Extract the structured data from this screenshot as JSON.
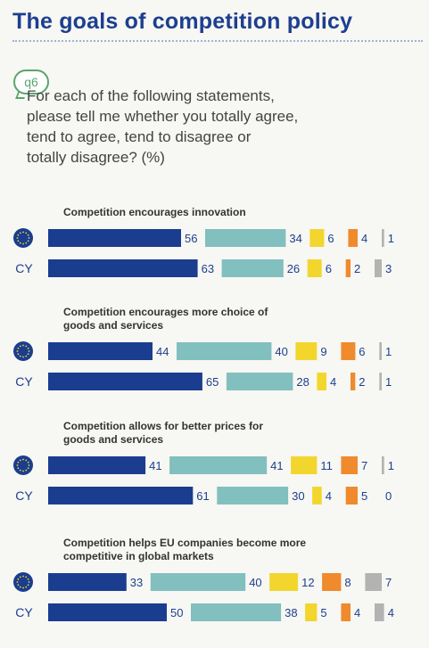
{
  "title": "The goals of competition policy",
  "question": {
    "badge": "q6",
    "text": "For each of the following statements,\nplease tell me whether you totally agree,\ntend to agree, tend to disagree or\ntotally disagree? (%)"
  },
  "colors": {
    "totally_agree": "#1a3d8f",
    "tend_to_agree": "#82bfbf",
    "tend_to_disagree": "#f2d62e",
    "totally_disagree": "#ef8a2d",
    "dont_know": "#b3b3b3",
    "eu_flag": "#1a3d8f",
    "eu_stars": "#f2d62e"
  },
  "chart_data": {
    "type": "bar",
    "stacked": true,
    "orientation": "horizontal",
    "title": "",
    "groups": [
      {
        "statement": "Competition encourages innovation",
        "rows": [
          {
            "label": "EU",
            "icon": "eu-flag-icon",
            "values": [
              56,
              34,
              6,
              4,
              1
            ]
          },
          {
            "label": "CY",
            "values": [
              63,
              26,
              6,
              2,
              3
            ]
          }
        ]
      },
      {
        "statement": "Competition encourages more choice of\ngoods and services",
        "rows": [
          {
            "label": "EU",
            "icon": "eu-flag-icon",
            "values": [
              44,
              40,
              9,
              6,
              1
            ]
          },
          {
            "label": "CY",
            "values": [
              65,
              28,
              4,
              2,
              1
            ]
          }
        ]
      },
      {
        "statement": "Competition allows for better prices for\ngoods and services",
        "rows": [
          {
            "label": "EU",
            "icon": "eu-flag-icon",
            "values": [
              41,
              41,
              11,
              7,
              1
            ]
          },
          {
            "label": "CY",
            "values": [
              61,
              30,
              4,
              5,
              0
            ]
          }
        ]
      },
      {
        "statement": "Competition helps EU companies become more\ncompetitive in global markets",
        "rows": [
          {
            "label": "EU",
            "icon": "eu-flag-icon",
            "values": [
              33,
              40,
              12,
              8,
              7
            ]
          },
          {
            "label": "CY",
            "values": [
              50,
              38,
              5,
              4,
              4
            ]
          }
        ]
      }
    ]
  }
}
